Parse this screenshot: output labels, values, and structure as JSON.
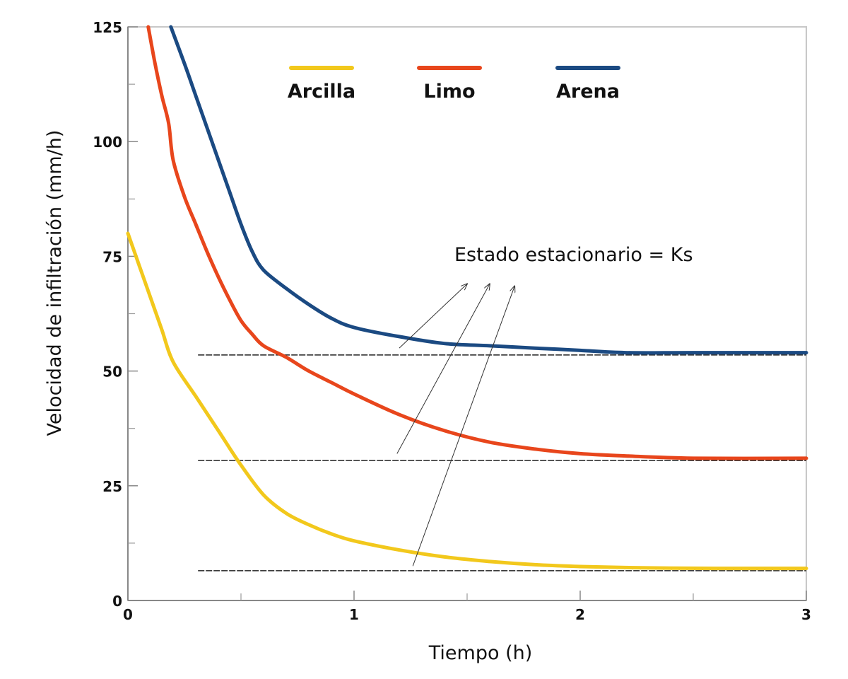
{
  "chart_data": {
    "type": "line",
    "xlabel": "Tiempo (h)",
    "ylabel": "Velocidad de infiltración (mm/h)",
    "xlim": [
      0,
      3
    ],
    "ylim": [
      0,
      125
    ],
    "x_ticks": [
      0,
      1,
      2,
      3
    ],
    "x_tick_labels": [
      "0",
      "1",
      "2",
      "3"
    ],
    "x_minor_ticks": [
      0.5,
      1.5,
      2.5
    ],
    "y_ticks": [
      0,
      25,
      50,
      75,
      100,
      125
    ],
    "y_tick_labels": [
      "0",
      "25",
      "50",
      "75",
      "100",
      "125"
    ],
    "y_minor_ticks": [
      12.5,
      37.5,
      62.5,
      87.5,
      112.5
    ],
    "grid": false,
    "legend_position": "top-center",
    "series": [
      {
        "name": "Arcilla",
        "color": "#f2c81c",
        "points": [
          [
            0,
            80
          ],
          [
            0.05,
            73
          ],
          [
            0.1,
            66
          ],
          [
            0.15,
            59
          ],
          [
            0.2,
            52
          ],
          [
            0.3,
            44.5
          ],
          [
            0.4,
            37
          ],
          [
            0.5,
            29.5
          ],
          [
            0.6,
            23
          ],
          [
            0.7,
            19
          ],
          [
            0.8,
            16.5
          ],
          [
            0.9,
            14.5
          ],
          [
            1.0,
            13
          ],
          [
            1.2,
            11
          ],
          [
            1.4,
            9.5
          ],
          [
            1.6,
            8.5
          ],
          [
            1.8,
            7.8
          ],
          [
            2.0,
            7.4
          ],
          [
            2.3,
            7.1
          ],
          [
            2.6,
            7
          ],
          [
            3.0,
            7
          ]
        ],
        "ks": 6.5
      },
      {
        "name": "Limo",
        "color": "#e8461c",
        "points": [
          [
            0.09,
            125
          ],
          [
            0.12,
            117
          ],
          [
            0.15,
            110
          ],
          [
            0.18,
            104
          ],
          [
            0.2,
            96
          ],
          [
            0.25,
            88
          ],
          [
            0.3,
            82
          ],
          [
            0.35,
            76
          ],
          [
            0.4,
            70.5
          ],
          [
            0.45,
            65.5
          ],
          [
            0.5,
            61
          ],
          [
            0.55,
            58
          ],
          [
            0.6,
            55.5
          ],
          [
            0.7,
            53
          ],
          [
            0.8,
            50
          ],
          [
            0.9,
            47.5
          ],
          [
            1.0,
            45
          ],
          [
            1.2,
            40.5
          ],
          [
            1.4,
            37
          ],
          [
            1.6,
            34.5
          ],
          [
            1.8,
            33
          ],
          [
            2.0,
            32
          ],
          [
            2.2,
            31.5
          ],
          [
            2.5,
            31
          ],
          [
            3.0,
            31
          ]
        ],
        "ks": 30.5
      },
      {
        "name": "Arena",
        "color": "#1b4a82",
        "points": [
          [
            0.19,
            125
          ],
          [
            0.25,
            117
          ],
          [
            0.3,
            110
          ],
          [
            0.35,
            103
          ],
          [
            0.4,
            96
          ],
          [
            0.45,
            89
          ],
          [
            0.5,
            82
          ],
          [
            0.55,
            76
          ],
          [
            0.6,
            72
          ],
          [
            0.7,
            68
          ],
          [
            0.8,
            64.5
          ],
          [
            0.9,
            61.5
          ],
          [
            1.0,
            59.5
          ],
          [
            1.2,
            57.5
          ],
          [
            1.4,
            56
          ],
          [
            1.6,
            55.5
          ],
          [
            1.8,
            55
          ],
          [
            2.0,
            54.5
          ],
          [
            2.2,
            54
          ],
          [
            2.5,
            54
          ],
          [
            3.0,
            54
          ]
        ],
        "ks": 53.5
      }
    ],
    "ks_line_x_start": 0.31,
    "annotation": {
      "text": "Estado estacionario = Ks",
      "arrows": [
        {
          "from": [
            1.2,
            55
          ],
          "to": [
            1.5,
            69
          ]
        },
        {
          "from": [
            1.19,
            32
          ],
          "to": [
            1.6,
            69
          ]
        },
        {
          "from": [
            1.26,
            7.5
          ],
          "to": [
            1.71,
            68.5
          ]
        }
      ]
    }
  }
}
